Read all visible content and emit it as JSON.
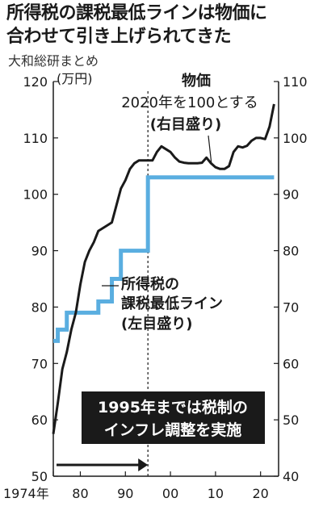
{
  "headline": {
    "line1": "所得税の課税最低ラインは物価に",
    "line2": "合わせて引き上げられてきた"
  },
  "source": "大和総研まとめ",
  "chart_data": {
    "type": "line",
    "x_tick_labels": [
      "1974年",
      "80",
      "90",
      "00",
      "10",
      "20"
    ],
    "x_tick_years": [
      1974,
      1980,
      1990,
      2000,
      2010,
      2020
    ],
    "x_range": [
      1974,
      2024
    ],
    "y_left": {
      "range": [
        50,
        120
      ],
      "ticks": [
        50,
        60,
        70,
        80,
        90,
        100,
        110,
        120
      ],
      "unit": "(万円)"
    },
    "y_right": {
      "range": [
        40,
        110
      ],
      "ticks": [
        40,
        50,
        60,
        70,
        80,
        90,
        100,
        110
      ]
    },
    "series": [
      {
        "name": "所得税の課税最低ライン",
        "axis": "left",
        "color": "#5aaee0",
        "step": true,
        "points": [
          [
            1974,
            74
          ],
          [
            1975,
            76
          ],
          [
            1976,
            76
          ],
          [
            1977,
            79
          ],
          [
            1983,
            79
          ],
          [
            1984,
            81
          ],
          [
            1987,
            85
          ],
          [
            1989,
            90
          ],
          [
            1993,
            90
          ],
          [
            1995,
            103
          ],
          [
            2023,
            103
          ]
        ]
      },
      {
        "name": "物価",
        "axis": "right",
        "color": "#1a1a1a",
        "points": [
          [
            1974,
            47.5
          ],
          [
            1975,
            53
          ],
          [
            1976,
            59
          ],
          [
            1977,
            62
          ],
          [
            1978,
            66
          ],
          [
            1979,
            69
          ],
          [
            1980,
            74
          ],
          [
            1981,
            78
          ],
          [
            1982,
            80
          ],
          [
            1983,
            81.5
          ],
          [
            1984,
            83.5
          ],
          [
            1985,
            84
          ],
          [
            1986,
            84.5
          ],
          [
            1987,
            85
          ],
          [
            1988,
            88
          ],
          [
            1989,
            91
          ],
          [
            1990,
            92.5
          ],
          [
            1991,
            94.5
          ],
          [
            1992,
            95.5
          ],
          [
            1993,
            96
          ],
          [
            1994,
            96
          ],
          [
            1995,
            96
          ],
          [
            1996,
            96
          ],
          [
            1997,
            97.5
          ],
          [
            1998,
            98.5
          ],
          [
            1999,
            98
          ],
          [
            2000,
            97.5
          ],
          [
            2001,
            96.5
          ],
          [
            2002,
            95.8
          ],
          [
            2003,
            95.6
          ],
          [
            2004,
            95.5
          ],
          [
            2005,
            95.5
          ],
          [
            2006,
            95.5
          ],
          [
            2007,
            95.6
          ],
          [
            2008,
            96.5
          ],
          [
            2009,
            95.5
          ],
          [
            2010,
            94.8
          ],
          [
            2011,
            94.5
          ],
          [
            2012,
            94.5
          ],
          [
            2013,
            95
          ],
          [
            2014,
            97.5
          ],
          [
            2015,
            98.5
          ],
          [
            2016,
            98.3
          ],
          [
            2017,
            98.6
          ],
          [
            2018,
            99.5
          ],
          [
            2019,
            100
          ],
          [
            2020,
            100
          ],
          [
            2021,
            99.8
          ],
          [
            2022,
            102
          ],
          [
            2023,
            106
          ]
        ]
      }
    ],
    "annotations": {
      "price_label": "物価",
      "price_base": "2020年を100とする",
      "price_axis": "(右目盛り)",
      "income_label_1": "所得税の",
      "income_label_2": "課税最低ライン",
      "income_axis": "(左目盛り)",
      "note_1": "1995年までは税制の",
      "note_2": "インフレ調整を実施",
      "divider_year": 1995
    }
  }
}
